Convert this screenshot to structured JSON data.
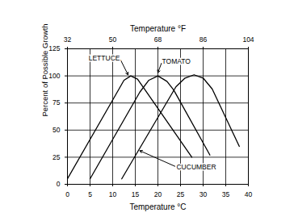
{
  "chart_data": {
    "type": "line",
    "x_label": "Temperature °C",
    "x2_label": "Temperature °F",
    "y_label": "Percent of Possible Growth",
    "xlim": [
      0,
      40
    ],
    "xticks": [
      0,
      5,
      10,
      15,
      20,
      25,
      30,
      35,
      40
    ],
    "x2lim": [
      32,
      104
    ],
    "x2ticks": [
      32,
      50,
      68,
      86,
      104
    ],
    "ylim": [
      0,
      125
    ],
    "yticks": [
      0,
      25,
      50,
      75,
      100,
      125
    ],
    "grid": true,
    "series": [
      {
        "name": "LETTUCE",
        "color": "#000000",
        "line_style": "solid",
        "x": [
          0,
          11,
          12.5,
          14,
          15.5,
          17,
          27.5
        ],
        "values": [
          5,
          85,
          96,
          100,
          97,
          88,
          25
        ]
      },
      {
        "name": "TOMATO",
        "color": "#000000",
        "line_style": "solid",
        "x": [
          5,
          16,
          18,
          20,
          22,
          23.5,
          31.5
        ],
        "values": [
          5,
          85,
          96,
          100,
          95,
          87,
          27
        ]
      },
      {
        "name": "CUCUMBER",
        "color": "#000000",
        "line_style": "solid",
        "x": [
          12,
          24,
          26,
          28,
          30,
          32,
          38
        ],
        "values": [
          5,
          90,
          98,
          101,
          98,
          88,
          35
        ]
      }
    ],
    "annotations": [
      {
        "text": "LETTUCE",
        "x": 11.6,
        "y": 116,
        "arrow_x": 13.4,
        "arrow_y": 101
      },
      {
        "text": "TOMATO",
        "x": 20.9,
        "y": 113,
        "arrow_x": 20,
        "arrow_y": 103
      },
      {
        "text": "CUCUMBER",
        "x": 24.1,
        "y": 16,
        "arrow_x": 16,
        "arrow_y": 31
      }
    ]
  }
}
